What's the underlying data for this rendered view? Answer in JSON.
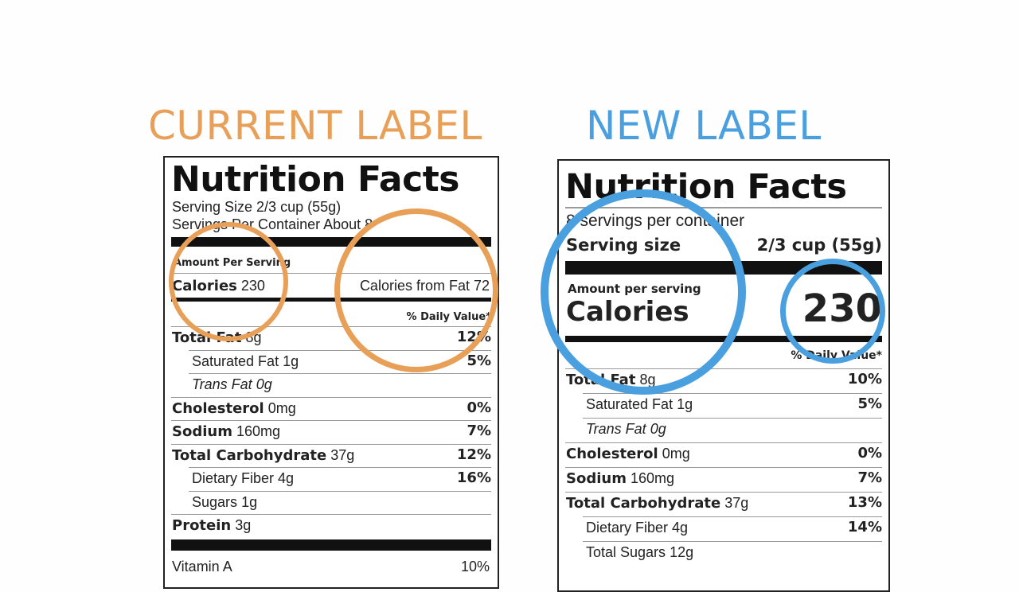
{
  "headings": {
    "current": "CURRENT LABEL",
    "new": "NEW LABEL"
  },
  "colors": {
    "current_accent": "#E8A058",
    "new_accent": "#4A9FDF"
  },
  "current_label": {
    "title": "Nutrition Facts",
    "serving_size": "Serving Size 2/3 cup (55g)",
    "servings_per_container": "Servings Per Container About 8",
    "amount_per_serving": "Amount Per Serving",
    "calories_label": "Calories",
    "calories_value": "230",
    "calories_from_fat": "Calories from Fat 72",
    "daily_value_header": "% Daily Value*",
    "rows": [
      {
        "name": "Total Fat",
        "amount": "8g",
        "dv": "12%"
      },
      {
        "name": "Saturated Fat",
        "amount": "1g",
        "dv": "5%"
      },
      {
        "name": "Trans Fat",
        "amount": "0g",
        "dv": ""
      },
      {
        "name": "Cholesterol",
        "amount": "0mg",
        "dv": "0%"
      },
      {
        "name": "Sodium",
        "amount": "160mg",
        "dv": "7%"
      },
      {
        "name": "Total Carbohydrate",
        "amount": "37g",
        "dv": "12%"
      },
      {
        "name": "Dietary Fiber",
        "amount": "4g",
        "dv": "16%"
      },
      {
        "name": "Sugars",
        "amount": "1g",
        "dv": ""
      },
      {
        "name": "Protein",
        "amount": "3g",
        "dv": ""
      }
    ],
    "vitamin_row": {
      "name": "Vitamin A",
      "dv": "10%"
    }
  },
  "new_label": {
    "title": "Nutrition Facts",
    "servings_per_container": "8 servings per container",
    "serving_size_label": "Serving size",
    "serving_size_value": "2/3 cup (55g)",
    "amount_per_serving": "Amount per serving",
    "calories_label": "Calories",
    "calories_value": "230",
    "daily_value_header": "% Daily Value*",
    "rows": [
      {
        "name": "Total Fat",
        "amount": "8g",
        "dv": "10%"
      },
      {
        "name": "Saturated Fat",
        "amount": "1g",
        "dv": "5%"
      },
      {
        "name": "Trans Fat",
        "amount": "0g",
        "dv": ""
      },
      {
        "name": "Cholesterol",
        "amount": "0mg",
        "dv": "0%"
      },
      {
        "name": "Sodium",
        "amount": "160mg",
        "dv": "7%"
      },
      {
        "name": "Total Carbohydrate",
        "amount": "37g",
        "dv": "13%"
      },
      {
        "name": "Dietary Fiber",
        "amount": "4g",
        "dv": "14%"
      },
      {
        "name": "Total Sugars",
        "amount": "12g",
        "dv": ""
      }
    ]
  }
}
